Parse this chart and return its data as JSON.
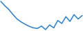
{
  "values": [
    22.0,
    20.5,
    19.2,
    17.5,
    16.0,
    15.0,
    14.2,
    13.5,
    13.0,
    12.8,
    13.6,
    12.4,
    14.0,
    13.0,
    15.5,
    14.5,
    16.8,
    15.2,
    17.5,
    16.0,
    17.2
  ],
  "line_color": "#3a87c8",
  "bg_color": "#ffffff",
  "linewidth": 1.2
}
